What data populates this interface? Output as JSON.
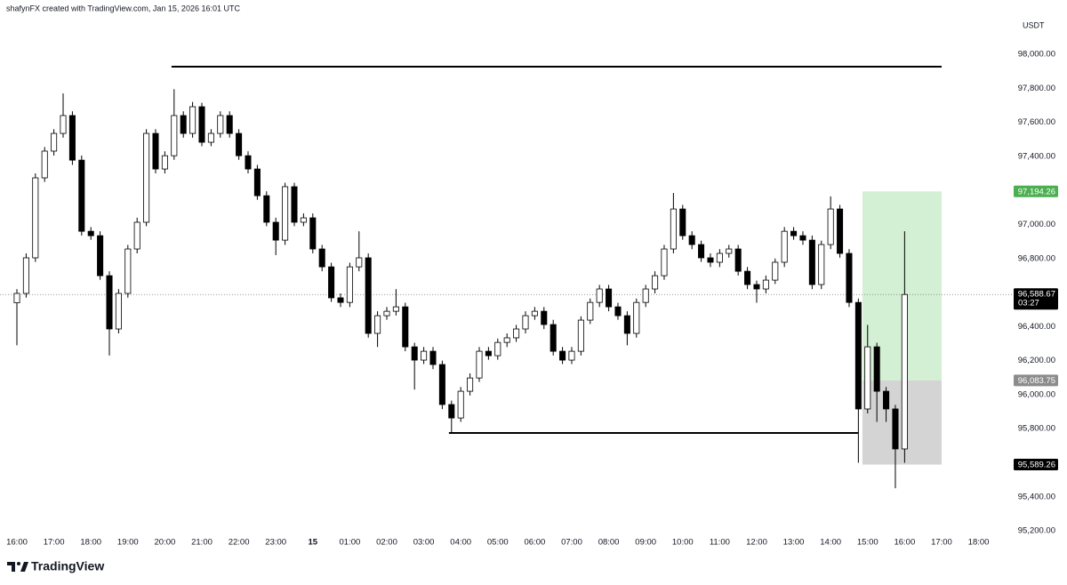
{
  "header": "shafynFX created with TradingView.com, Jan 15, 2026 16:01 UTC",
  "brand": "TradingView",
  "chart_data": {
    "type": "candlestick",
    "unit": "USDT",
    "xlim": [
      -0.457,
      26.9
    ],
    "ylim": [
      95195,
      98319
    ],
    "xticks": [
      {
        "value": 0,
        "label": "16:00"
      },
      {
        "value": 1,
        "label": "17:00"
      },
      {
        "value": 2,
        "label": "18:00"
      },
      {
        "value": 3,
        "label": "19:00"
      },
      {
        "value": 4,
        "label": "20:00"
      },
      {
        "value": 5,
        "label": "21:00"
      },
      {
        "value": 6,
        "label": "22:00"
      },
      {
        "value": 7,
        "label": "23:00"
      },
      {
        "value": 8,
        "label": "15"
      },
      {
        "value": 9,
        "label": "01:00"
      },
      {
        "value": 10,
        "label": "02:00"
      },
      {
        "value": 11,
        "label": "03:00"
      },
      {
        "value": 12,
        "label": "04:00"
      },
      {
        "value": 13,
        "label": "05:00"
      },
      {
        "value": 14,
        "label": "06:00"
      },
      {
        "value": 15,
        "label": "07:00"
      },
      {
        "value": 16,
        "label": "08:00"
      },
      {
        "value": 17,
        "label": "09:00"
      },
      {
        "value": 18,
        "label": "10:00"
      },
      {
        "value": 19,
        "label": "11:00"
      },
      {
        "value": 20,
        "label": "12:00"
      },
      {
        "value": 21,
        "label": "13:00"
      },
      {
        "value": 22,
        "label": "14:00"
      },
      {
        "value": 23,
        "label": "15:00"
      },
      {
        "value": 24,
        "label": "16:00"
      },
      {
        "value": 25,
        "label": "17:00"
      },
      {
        "value": 26,
        "label": "18:00"
      }
    ],
    "yticks": [
      {
        "value": 95200,
        "label": "95,200.00"
      },
      {
        "value": 95400,
        "label": "95,400.00"
      },
      {
        "value": 95600,
        "label": "95,600.00"
      },
      {
        "value": 95800,
        "label": "95,800.00"
      },
      {
        "value": 96000,
        "label": "96,000.00"
      },
      {
        "value": 96200,
        "label": "96,200.00"
      },
      {
        "value": 96400,
        "label": "96,400.00"
      },
      {
        "value": 96600,
        "label": "96,600.00"
      },
      {
        "value": 96800,
        "label": "96,800.00"
      },
      {
        "value": 97000,
        "label": "97,000.00"
      },
      {
        "value": 97200,
        "label": "97,200.00"
      },
      {
        "value": 97400,
        "label": "97,400.00"
      },
      {
        "value": 97600,
        "label": "97,600.00"
      },
      {
        "value": 97800,
        "label": "97,800.00"
      },
      {
        "value": 98000,
        "label": "98,000.00"
      }
    ],
    "up_color": "#ffffff",
    "down_color": "#000000",
    "wick_color": "#000000",
    "x": [
      0,
      0.25,
      0.5,
      0.75,
      1,
      1.25,
      1.5,
      1.75,
      2,
      2.25,
      2.5,
      2.75,
      3,
      3.25,
      3.5,
      3.75,
      4,
      4.25,
      4.5,
      4.75,
      5,
      5.25,
      5.5,
      5.75,
      6,
      6.25,
      6.5,
      6.75,
      7,
      7.25,
      7.5,
      7.75,
      8,
      8.25,
      8.5,
      8.75,
      9,
      9.25,
      9.5,
      9.75,
      10,
      10.25,
      10.5,
      10.75,
      11,
      11.25,
      11.5,
      11.75,
      12,
      12.25,
      12.5,
      12.75,
      13,
      13.25,
      13.5,
      13.75,
      14,
      14.25,
      14.5,
      14.75,
      15,
      15.25,
      15.5,
      15.75,
      16,
      16.25,
      16.5,
      16.75,
      17,
      17.25,
      17.5,
      17.75,
      18,
      18.25,
      18.5,
      18.75,
      19,
      19.25,
      19.5,
      19.75,
      20,
      20.25,
      20.5,
      20.75,
      21,
      21.25,
      21.5,
      21.75,
      22,
      22.25,
      22.5,
      22.75,
      23,
      23.25,
      23.5,
      23.75,
      24
    ],
    "open": [
      96540,
      96595,
      96804,
      97274,
      97431,
      97535,
      97640,
      97378,
      96960,
      96934,
      96699,
      96386,
      96595,
      96856,
      97013,
      97535,
      97326,
      97404,
      97640,
      97535,
      97692,
      97483,
      97535,
      97640,
      97535,
      97404,
      97326,
      97169,
      97013,
      96908,
      97222,
      97013,
      97039,
      96856,
      96751,
      96569,
      96542,
      96751,
      96804,
      96360,
      96464,
      96490,
      96516,
      96281,
      96203,
      96255,
      96177,
      95942,
      95863,
      96020,
      96098,
      96255,
      96229,
      96307,
      96334,
      96386,
      96464,
      96490,
      96412,
      96255,
      96203,
      96255,
      96438,
      96542,
      96621,
      96516,
      96464,
      96360,
      96542,
      96621,
      96699,
      96856,
      97091,
      96934,
      96882,
      96804,
      96778,
      96830,
      96856,
      96725,
      96647,
      96621,
      96673,
      96778,
      96960,
      96934,
      96908,
      96647,
      96882,
      97091,
      96830,
      96542,
      95916,
      96281,
      96020,
      95916,
      95681
    ],
    "high": [
      96620,
      96830,
      97300,
      97455,
      97560,
      97770,
      97665,
      97405,
      96985,
      96960,
      96725,
      96620,
      96880,
      97040,
      97560,
      97560,
      97430,
      97795,
      97665,
      97720,
      97715,
      97560,
      97665,
      97665,
      97560,
      97430,
      97350,
      97195,
      97040,
      97245,
      97245,
      97065,
      97065,
      96880,
      96775,
      96595,
      96775,
      96960,
      96830,
      96490,
      96515,
      96620,
      96540,
      96305,
      96280,
      96280,
      96200,
      95965,
      96045,
      96125,
      96280,
      96280,
      96330,
      96360,
      96410,
      96490,
      96515,
      96515,
      96440,
      96280,
      96280,
      96460,
      96565,
      96645,
      96645,
      96540,
      96490,
      96565,
      96645,
      96725,
      96880,
      97185,
      97115,
      96960,
      96905,
      96830,
      96855,
      96880,
      96880,
      96750,
      96670,
      96700,
      96800,
      96985,
      96985,
      96960,
      96935,
      96905,
      97165,
      97115,
      96855,
      96565,
      96410,
      96305,
      96045,
      95940,
      96960
    ],
    "low": [
      96290,
      96570,
      96780,
      97250,
      97405,
      97510,
      97350,
      96935,
      96910,
      96675,
      96230,
      96360,
      96570,
      96830,
      96990,
      97300,
      97300,
      97380,
      97510,
      97510,
      97460,
      97460,
      97510,
      97510,
      97380,
      97300,
      97145,
      96990,
      96820,
      96880,
      96990,
      96990,
      96830,
      96725,
      96545,
      96515,
      96515,
      96725,
      96335,
      96280,
      96440,
      96465,
      96255,
      96030,
      96180,
      96150,
      95915,
      95780,
      95840,
      95995,
      96075,
      96205,
      96205,
      96280,
      96310,
      96360,
      96440,
      96385,
      96230,
      96180,
      96180,
      96230,
      96415,
      96515,
      96490,
      96440,
      96290,
      96335,
      96515,
      96595,
      96675,
      96830,
      96910,
      96855,
      96780,
      96750,
      96750,
      96805,
      96700,
      96620,
      96540,
      96595,
      96650,
      96750,
      96910,
      96880,
      96620,
      96620,
      96855,
      96805,
      96515,
      95600,
      95890,
      95840,
      95840,
      95450,
      95600
    ],
    "close": [
      96595,
      96804,
      97274,
      97431,
      97535,
      97640,
      97378,
      96960,
      96934,
      96699,
      96386,
      96595,
      96856,
      97013,
      97535,
      97326,
      97404,
      97640,
      97535,
      97692,
      97483,
      97535,
      97640,
      97535,
      97404,
      97326,
      97169,
      97013,
      96908,
      97222,
      97013,
      97039,
      96856,
      96751,
      96569,
      96542,
      96751,
      96804,
      96360,
      96464,
      96490,
      96516,
      96281,
      96203,
      96255,
      96177,
      95942,
      95863,
      96020,
      96098,
      96255,
      96229,
      96307,
      96334,
      96386,
      96464,
      96490,
      96412,
      96255,
      96203,
      96255,
      96438,
      96542,
      96621,
      96516,
      96464,
      96360,
      96542,
      96621,
      96699,
      96856,
      97091,
      96934,
      96882,
      96804,
      96778,
      96830,
      96856,
      96725,
      96647,
      96621,
      96673,
      96778,
      96960,
      96934,
      96908,
      96647,
      96882,
      97091,
      96830,
      96542,
      95916,
      96281,
      96020,
      95916,
      95681,
      96588.67
    ],
    "lines": [
      {
        "price": 97927,
        "x_start": 4.18,
        "x_end": 25.0,
        "color": "#000000"
      },
      {
        "price": 95775,
        "x_start": 11.68,
        "x_end": 22.74,
        "color": "#000000"
      }
    ],
    "position": {
      "x_start": 22.86,
      "x_end": 25.0,
      "target": {
        "value": 97194.26,
        "label": "97,194.26",
        "color": "#4caf50",
        "zone_color": "#d3efd4"
      },
      "entry": {
        "value": 96083.75,
        "label": "96,083.75",
        "color": "#8c8c8c"
      },
      "stop": {
        "value": 95589.26,
        "label": "95,589.26",
        "color": "#000000",
        "zone_color": "#d4d4d4"
      }
    },
    "last_price": {
      "value": 96588.67,
      "label": "96,588.67",
      "countdown": "03:27",
      "color": "#000000"
    }
  }
}
